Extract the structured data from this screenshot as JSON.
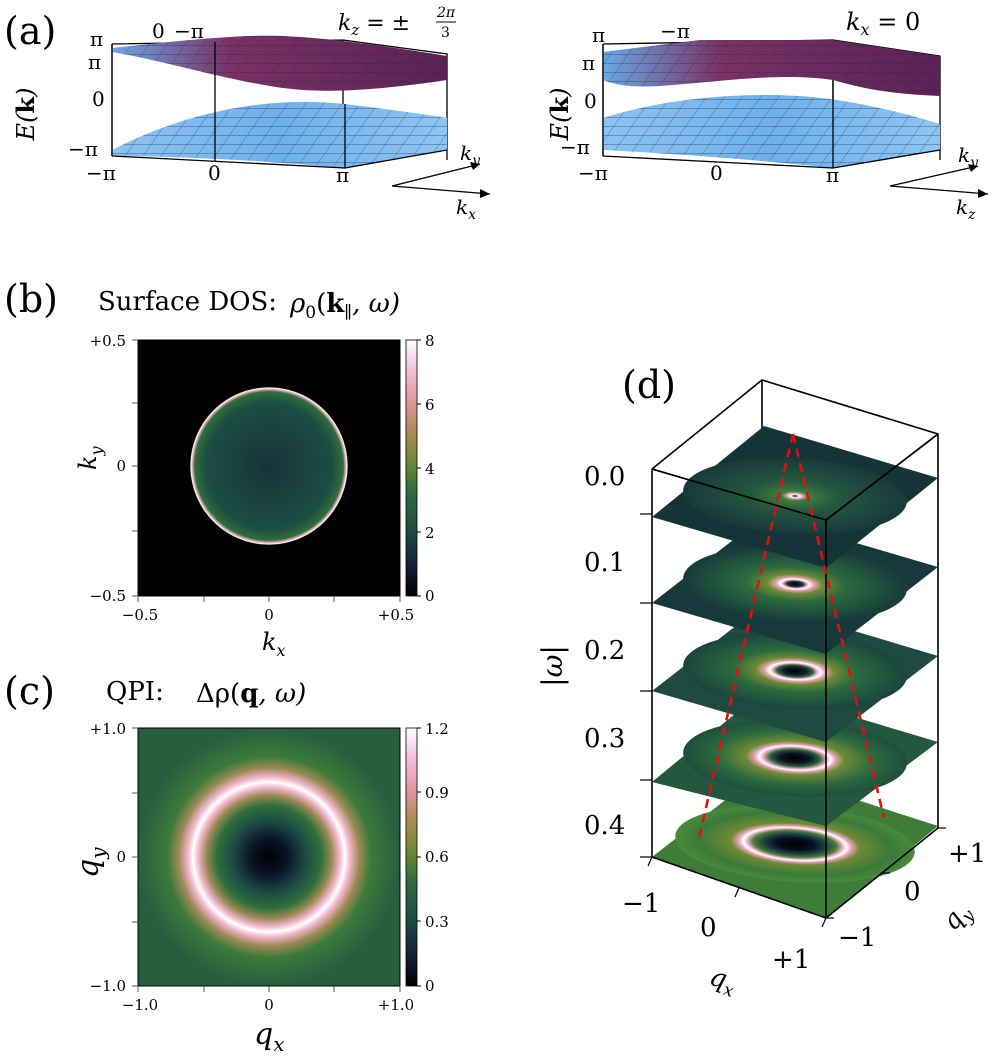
{
  "panels": {
    "a": {
      "label": "(a)",
      "left": {
        "title": "k_z = ±2π/3",
        "title_main": "k",
        "title_sub": "z",
        "title_eq": " = ±",
        "title_frac_num": "2π",
        "title_frac_den": "3",
        "z_label": "E(k)",
        "z_ticks": [
          "π",
          "0",
          "−π"
        ],
        "back_ticks": [
          "π",
          "0",
          "−π"
        ],
        "x_ticks": [
          "−π",
          "0",
          "π"
        ],
        "axis_ky": "k_y",
        "axis_kx": "k_x"
      },
      "right": {
        "title": "k_x = 0",
        "title_main": "k",
        "title_sub": "x",
        "title_eq": " = 0",
        "z_label": "E(k)",
        "z_ticks": [
          "π",
          "0",
          "−π"
        ],
        "back_ticks": [
          "π",
          "−π"
        ],
        "x_ticks": [
          "−π",
          "0",
          "π"
        ],
        "axis_ky": "k_y",
        "axis_kz": "k_z"
      },
      "colors": {
        "lower_band": "#6fb3ee",
        "upper_band": "#6a2a5c",
        "upper_band_top": "#5aa6e6",
        "mesh": "#22324a"
      }
    },
    "b": {
      "label": "(b)",
      "title": "Surface DOS:",
      "title_math": "ρ0(k∥, ω)",
      "title_rho": "ρ",
      "title_rho_sub": "0",
      "title_args_open": "(",
      "title_k": "k",
      "title_k_sub": "∥",
      "title_args_close": ", ω)",
      "x_label": "k_x",
      "y_label": "k_y",
      "x_ticks": [
        "−0.5",
        "0",
        "+0.5"
      ],
      "y_ticks": [
        "+0.5",
        "0",
        "−0.5"
      ],
      "colorbar_ticks": [
        "8",
        "6",
        "4",
        "2",
        "0"
      ]
    },
    "c": {
      "label": "(c)",
      "title": "QPI:",
      "title_math": "Δρ(q, ω)",
      "title_delta": "Δρ(",
      "title_q": "q",
      "title_end": ", ω)",
      "x_label": "q_x",
      "y_label": "q_y",
      "x_ticks": [
        "−1.0",
        "0",
        "+1.0"
      ],
      "y_ticks": [
        "+1.0",
        "0",
        "−1.0"
      ],
      "colorbar_ticks": [
        "1.2",
        "0.9",
        "0.6",
        "0.3",
        "0"
      ]
    },
    "d": {
      "label": "(d)",
      "omega_label": "|ω|",
      "omega_ticks": [
        "0.0",
        "0.1",
        "0.2",
        "0.3",
        "0.4"
      ],
      "qx_label": "q_x",
      "qy_label": "q_y",
      "qx_ticks": [
        "−1",
        "0",
        "+1"
      ],
      "qy_ticks": [
        "+1",
        "0",
        "−1"
      ]
    }
  },
  "colormap": [
    "#000000",
    "#14203a",
    "#1f4a44",
    "#2e6a3c",
    "#6a8a35",
    "#b48a5a",
    "#e89aa8",
    "#f4c9e2",
    "#ffffff"
  ]
}
